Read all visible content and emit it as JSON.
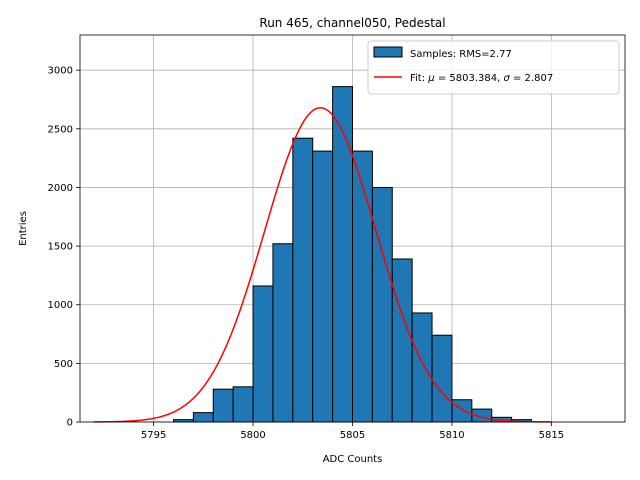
{
  "chart_data": {
    "type": "bar",
    "title": "Run 465, channel050, Pedestal",
    "xlabel": "ADC Counts",
    "ylabel": "Entries",
    "xlim": [
      5791.3,
      5818.7
    ],
    "ylim": [
      0,
      3300
    ],
    "xticks": [
      5795,
      5800,
      5805,
      5810,
      5815
    ],
    "yticks": [
      0,
      500,
      1000,
      1500,
      2000,
      2500,
      3000
    ],
    "xtick_labels": [
      "5795",
      "5800",
      "5805",
      "5810",
      "5815"
    ],
    "ytick_labels": [
      "0",
      "500",
      "1000",
      "1500",
      "2000",
      "2500",
      "3000"
    ],
    "grid": true,
    "legend_position": "top-right",
    "bar_color": "#1f77b4",
    "fit_color": "#ff0000",
    "bins": {
      "edges": [
        5792,
        5793,
        5794,
        5795,
        5796,
        5797,
        5798,
        5799,
        5800,
        5801,
        5802,
        5803,
        5804,
        5805,
        5806,
        5807,
        5808,
        5809,
        5810,
        5811,
        5812,
        5813,
        5814,
        5815,
        5816,
        5817
      ],
      "counts": [
        0,
        0,
        0,
        0,
        20,
        80,
        280,
        300,
        1160,
        1520,
        2420,
        2310,
        2860,
        2310,
        2000,
        1390,
        930,
        740,
        190,
        110,
        40,
        20,
        0,
        0,
        0
      ]
    },
    "fit": {
      "mu": 5803.384,
      "sigma": 2.807,
      "amplitude": 2680,
      "x_range": [
        5792,
        5815
      ]
    },
    "legend": {
      "samples_label": "Samples: RMS=2.77",
      "fit_prefix": "Fit: ",
      "fit_mu_symbol": "μ",
      "fit_mu_text": " = 5803.384, ",
      "fit_sigma_symbol": "σ",
      "fit_sigma_text": " = 2.807"
    }
  }
}
